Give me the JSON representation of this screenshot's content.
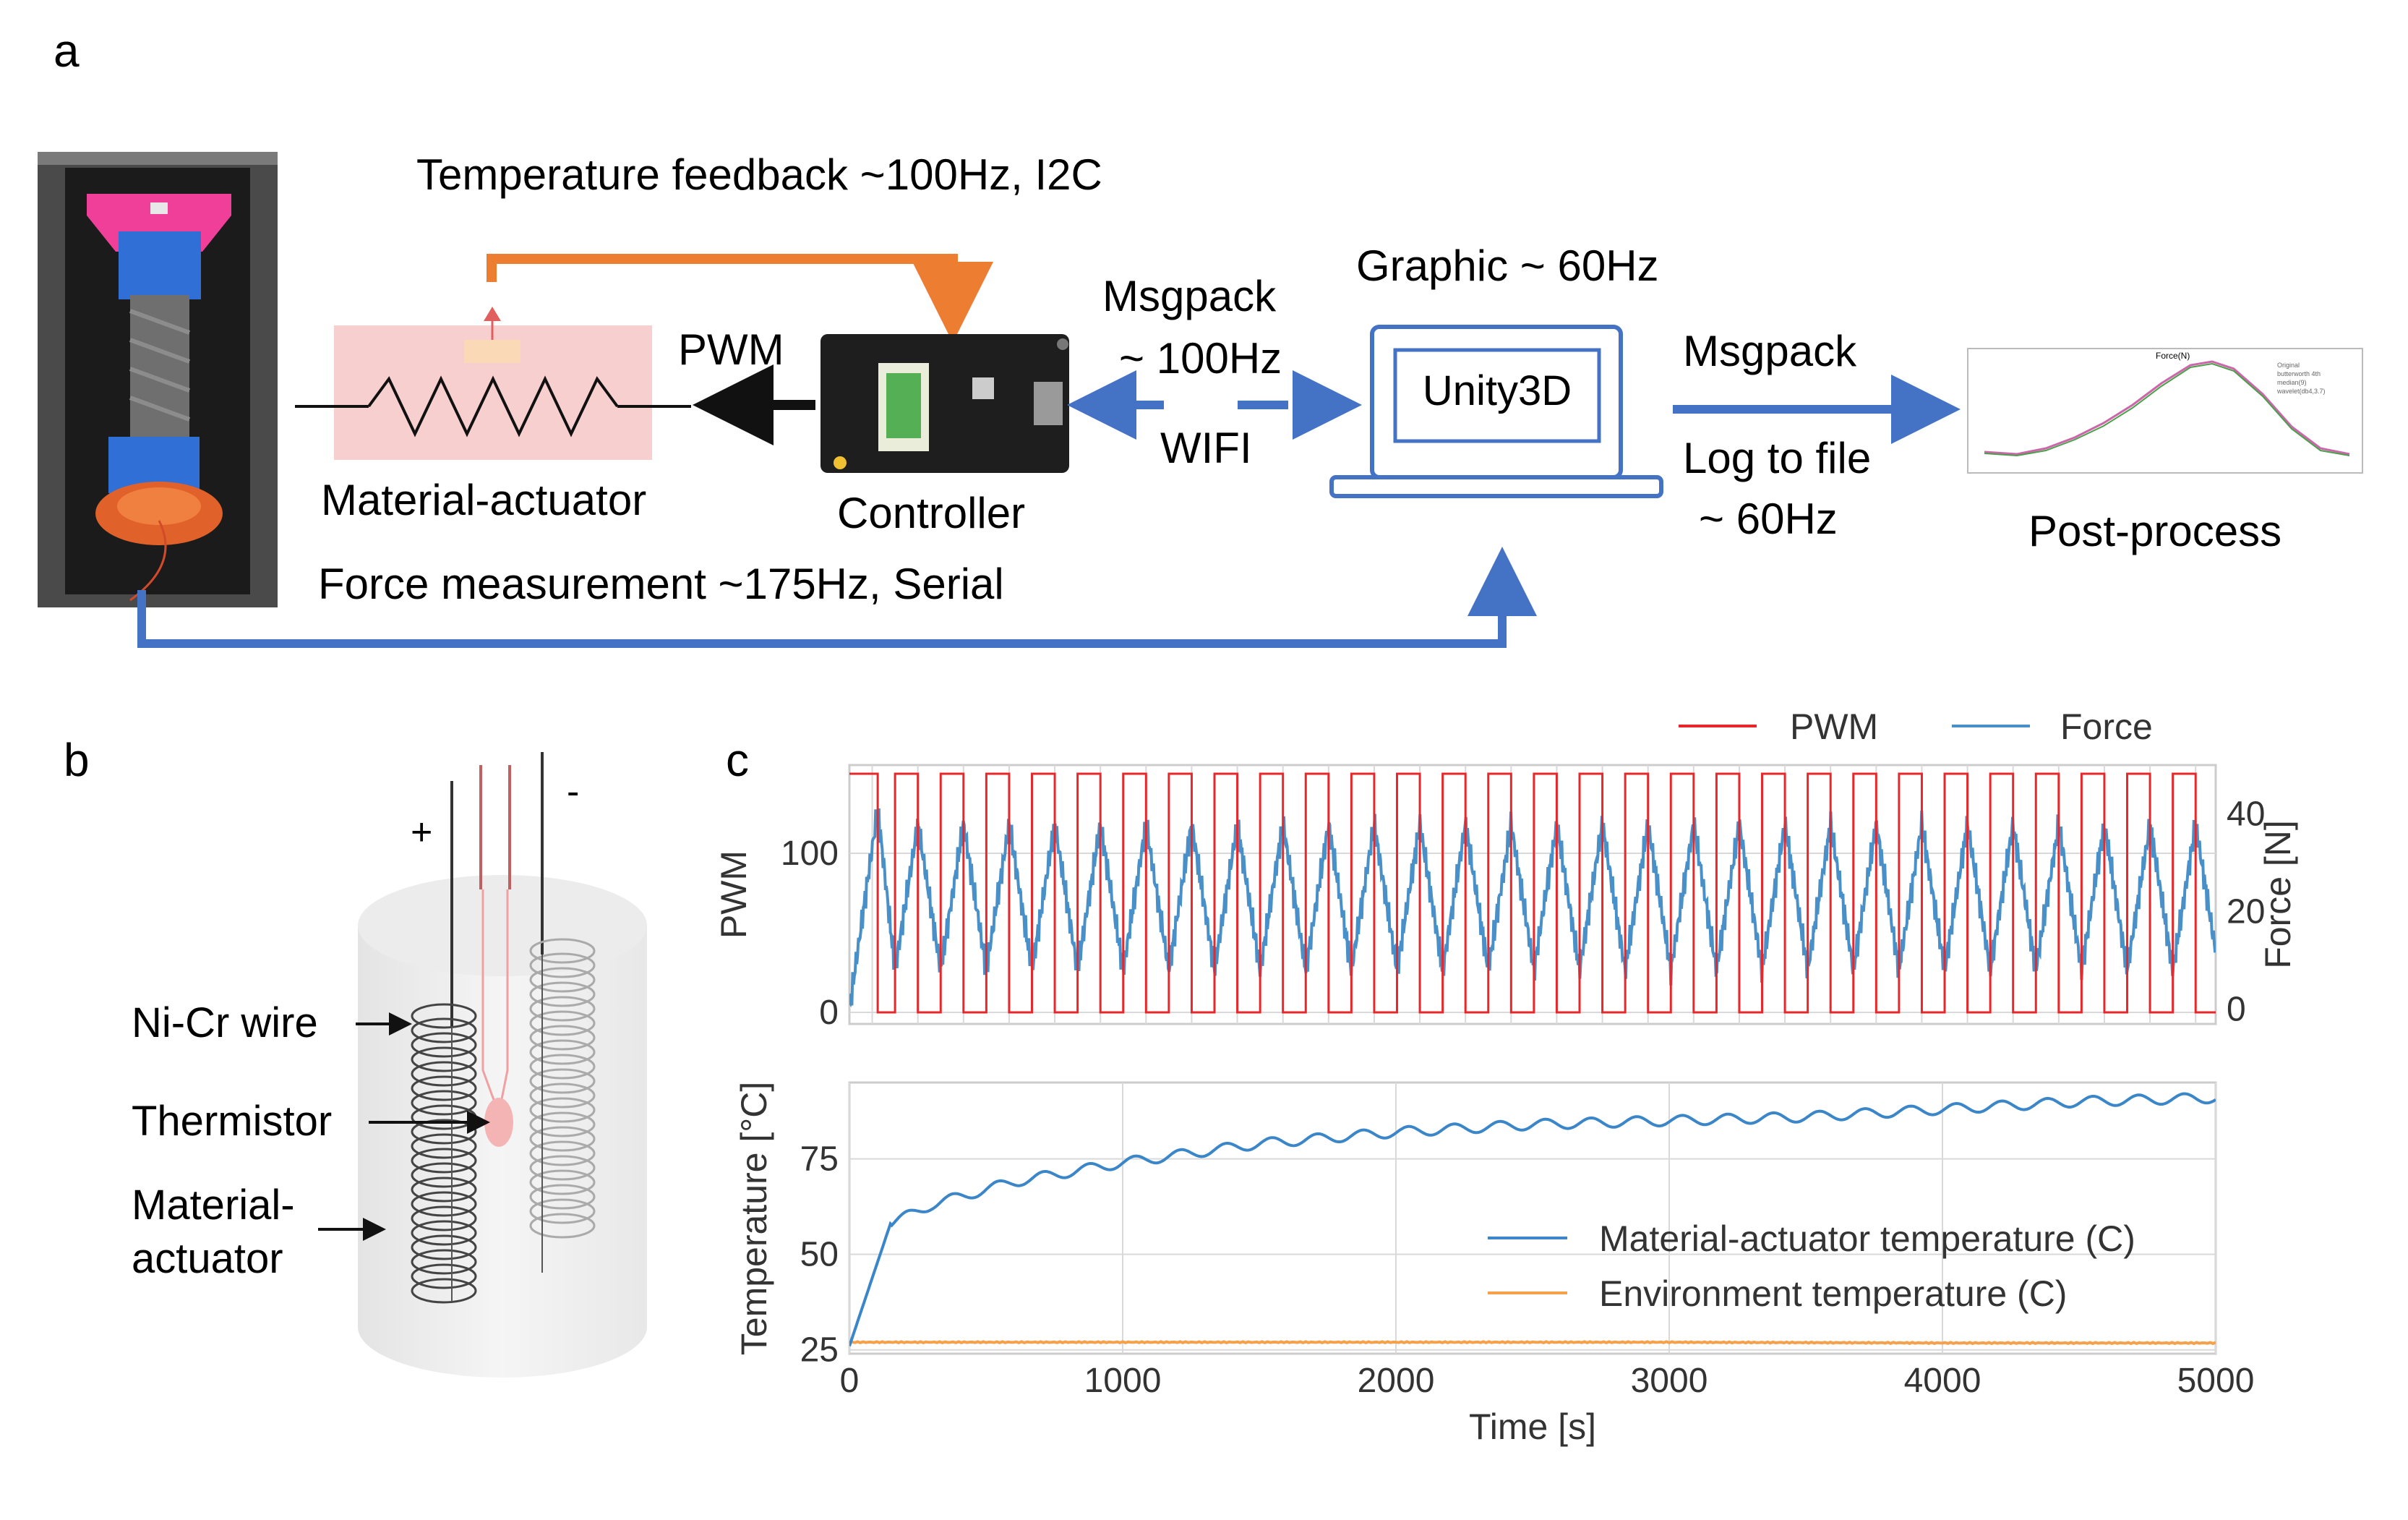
{
  "panels": {
    "a": "a",
    "b": "b",
    "c": "c"
  },
  "colors": {
    "orange": "#ed7d31",
    "blue": "#4472c4",
    "pwm_red": "#e8272a",
    "force_blue": "#4a90c8",
    "temp_orange": "#f5a04a",
    "pink": "#f8cfcf"
  },
  "panel_a": {
    "temperature_feedback": "Temperature feedback ~100Hz, I2C",
    "pwm": "PWM",
    "material_actuator": "Material-actuator",
    "controller": "Controller",
    "msgpack_left_1": "Msgpack",
    "msgpack_left_2": "~ 100Hz",
    "wifi": "WIFI",
    "graphic": "Graphic ~ 60Hz",
    "unity": "Unity3D",
    "msgpack_right": "Msgpack",
    "log_1": "Log to file",
    "log_2": "~ 60Hz",
    "post_process": "Post-process",
    "force_measurement": "Force measurement ~175Hz, Serial",
    "thumb_title": "Force(N)",
    "thumb_legend": [
      "Original",
      "butterworth 4th",
      "median(9)",
      "wavelet(db4,3.7)"
    ]
  },
  "panel_b": {
    "plus": "+",
    "minus": "-",
    "nicr": "Ni-Cr wire",
    "thermistor": "Thermistor",
    "actuator_1": "Material-",
    "actuator_2": "actuator"
  },
  "chart_data": [
    {
      "type": "line",
      "title": "",
      "legend": [
        "PWM",
        "Force"
      ],
      "legend_position": "top-right",
      "xlim": [
        0,
        5000
      ],
      "ylabel": "PWM",
      "ylim": [
        0,
        150
      ],
      "yticks": [
        "0",
        "100"
      ],
      "ylabel_right": "Force [N]",
      "ylim_right": [
        -3,
        50
      ],
      "yticks_right": [
        "0",
        "20",
        "40"
      ],
      "series": [
        {
          "name": "PWM",
          "pattern": "square wave",
          "high": 150,
          "low": 0,
          "period_s": 167,
          "cycles": 30
        },
        {
          "name": "Force",
          "pattern": "sawtooth (rise on PWM high, decay on PWM low)",
          "start": 0,
          "first_peak": 41,
          "peak": 38,
          "trough": 8
        }
      ],
      "grid": true
    },
    {
      "type": "line",
      "xlabel": "Time [s]",
      "ylabel": "Temperature [°C]",
      "xlim": [
        0,
        5000
      ],
      "ylim": [
        24,
        95
      ],
      "xticks": [
        "0",
        "1000",
        "2000",
        "3000",
        "4000",
        "5000"
      ],
      "yticks": [
        "25",
        "50",
        "75"
      ],
      "legend": [
        "Material-actuator temperature (C)",
        "Environment temperature (C)"
      ],
      "legend_position": "lower-right",
      "series": [
        {
          "name": "Material-actuator temperature (C)",
          "x": [
            0,
            150,
            300,
            600,
            1000,
            1500,
            2000,
            2500,
            3000,
            3500,
            4000,
            4500,
            5000
          ],
          "y": [
            26,
            58,
            63,
            69,
            74,
            79,
            82,
            84,
            85,
            86,
            88,
            90,
            91
          ]
        },
        {
          "name": "Environment temperature (C)",
          "x": [
            0,
            1000,
            2000,
            3000,
            4000,
            5000
          ],
          "y": [
            27,
            27,
            27,
            27,
            26.8,
            26.8
          ]
        }
      ],
      "grid": true
    }
  ]
}
